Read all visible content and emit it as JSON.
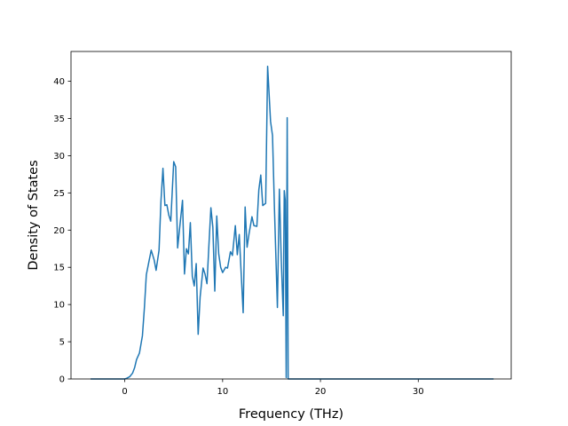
{
  "chart_data": {
    "type": "line",
    "title": "",
    "xlabel": "Frequency (THz)",
    "ylabel": "Density of States",
    "xlim": [
      -5.5,
      39.5
    ],
    "ylim": [
      0,
      44
    ],
    "x_ticks": [
      0,
      10,
      20,
      30
    ],
    "y_ticks": [
      0,
      5,
      10,
      15,
      20,
      25,
      30,
      35,
      40
    ],
    "grid": false,
    "legend": "none",
    "line_color": "#1f77b4",
    "series": [
      {
        "x": [
          -3.5,
          -2.0,
          -0.5,
          0.0,
          0.2,
          0.5,
          0.8,
          1.0,
          1.2,
          1.5,
          1.8,
          2.0,
          2.2,
          2.5,
          2.7,
          3.0,
          3.2,
          3.5,
          3.7,
          3.9,
          4.1,
          4.3,
          4.5,
          4.7,
          5.0,
          5.2,
          5.4,
          5.6,
          5.9,
          6.1,
          6.3,
          6.5,
          6.7,
          6.9,
          7.1,
          7.3,
          7.5,
          7.7,
          8.0,
          8.2,
          8.4,
          8.6,
          8.8,
          9.0,
          9.2,
          9.4,
          9.6,
          9.8,
          10.0,
          10.3,
          10.5,
          10.8,
          11.0,
          11.3,
          11.5,
          11.7,
          11.9,
          12.1,
          12.3,
          12.5,
          12.7,
          13.0,
          13.2,
          13.5,
          13.7,
          13.9,
          14.1,
          14.4,
          14.6,
          14.9,
          15.1,
          15.3,
          15.6,
          15.8,
          16.0,
          16.2,
          16.3,
          16.4,
          16.5,
          16.6,
          16.7,
          16.8,
          17.0,
          20.0,
          25.0,
          30.0,
          37.7
        ],
        "y": [
          0,
          0,
          0,
          0,
          0.1,
          0.3,
          0.8,
          1.5,
          2.6,
          3.5,
          5.8,
          9.5,
          14.0,
          16.0,
          17.3,
          16.0,
          14.6,
          17.3,
          24.0,
          28.3,
          23.3,
          23.4,
          22.0,
          21.2,
          29.2,
          28.5,
          17.6,
          20.2,
          24.0,
          14.1,
          17.5,
          16.8,
          21.0,
          13.8,
          12.5,
          15.5,
          6.0,
          11.0,
          14.9,
          14.1,
          12.8,
          18.0,
          23.0,
          20.4,
          11.8,
          21.9,
          16.8,
          15.0,
          14.3,
          15.0,
          14.9,
          17.1,
          16.6,
          20.6,
          16.7,
          19.4,
          14.1,
          8.9,
          23.1,
          17.7,
          19.5,
          21.8,
          20.6,
          20.5,
          25.4,
          27.4,
          23.3,
          23.6,
          42.0,
          34.6,
          32.7,
          22.8,
          9.6,
          25.5,
          15.8,
          8.5,
          25.3,
          24.0,
          0.2,
          35.1,
          0.0,
          0.0,
          0.0,
          0.0,
          0.0,
          0.0,
          0.0
        ]
      }
    ]
  }
}
